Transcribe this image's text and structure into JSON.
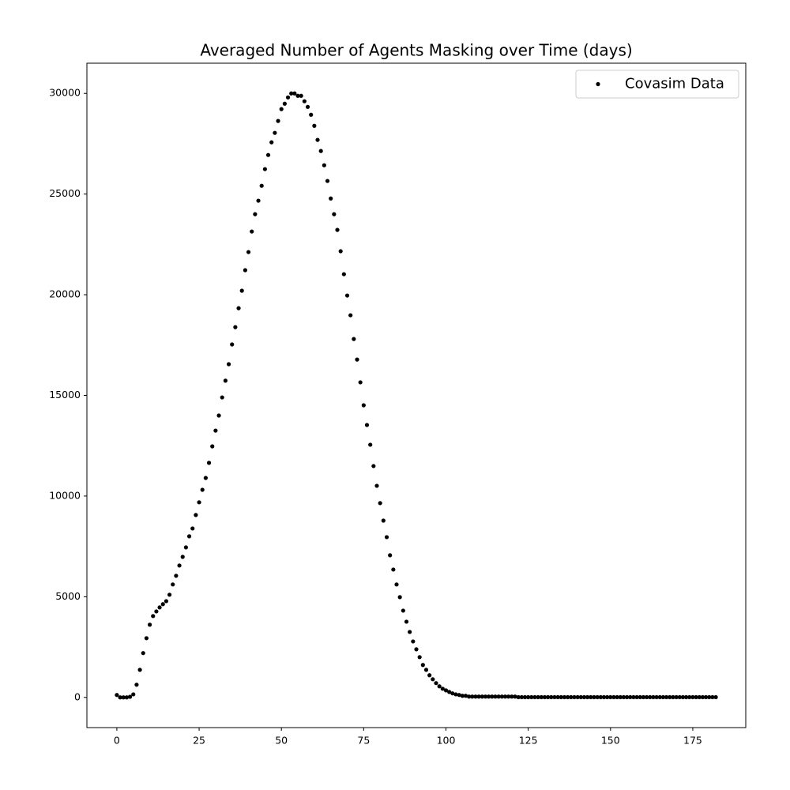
{
  "chart_data": {
    "type": "scatter",
    "title": "Averaged Number of Agents Masking over Time (days)",
    "series": [
      {
        "name": "Covasim Data",
        "color": "#000000",
        "x": [
          0,
          1,
          2,
          3,
          4,
          5,
          6,
          7,
          8,
          9,
          10,
          11,
          12,
          13,
          14,
          15,
          16,
          17,
          18,
          19,
          20,
          21,
          22,
          23,
          24,
          25,
          26,
          27,
          28,
          29,
          30,
          31,
          32,
          33,
          34,
          35,
          36,
          37,
          38,
          39,
          40,
          41,
          42,
          43,
          44,
          45,
          46,
          47,
          48,
          49,
          50,
          51,
          52,
          53,
          54,
          55,
          56,
          57,
          58,
          59,
          60,
          61,
          62,
          63,
          64,
          65,
          66,
          67,
          68,
          69,
          70,
          71,
          72,
          73,
          74,
          75,
          76,
          77,
          78,
          79,
          80,
          81,
          82,
          83,
          84,
          85,
          86,
          87,
          88,
          89,
          90,
          91,
          92,
          93,
          94,
          95,
          96,
          97,
          98,
          99,
          100,
          101,
          102,
          103,
          104,
          105,
          106,
          107,
          108,
          109,
          110,
          111,
          112,
          113,
          114,
          115,
          116,
          117,
          118,
          119,
          120,
          121,
          122,
          123,
          124,
          125,
          126,
          127,
          128,
          129,
          130,
          131,
          132,
          133,
          134,
          135,
          136,
          137,
          138,
          139,
          140,
          141,
          142,
          143,
          144,
          145,
          146,
          147,
          148,
          149,
          150,
          151,
          152,
          153,
          154,
          155,
          156,
          157,
          158,
          159,
          160,
          161,
          162,
          163,
          164,
          165,
          166,
          167,
          168,
          169,
          170,
          171,
          172,
          173,
          174,
          175,
          176,
          177,
          178,
          179,
          180,
          181,
          182
        ],
        "values": [
          120,
          0,
          0,
          0,
          30,
          150,
          630,
          1370,
          2200,
          2940,
          3610,
          4040,
          4270,
          4470,
          4630,
          4780,
          5100,
          5610,
          6040,
          6550,
          6980,
          7450,
          8000,
          8390,
          9060,
          9690,
          10310,
          10900,
          11650,
          12470,
          13250,
          14000,
          14900,
          15730,
          16550,
          17530,
          18390,
          19330,
          20200,
          21220,
          22120,
          23140,
          24000,
          24670,
          25410,
          26240,
          26940,
          27570,
          28040,
          28630,
          29220,
          29490,
          29800,
          30000,
          30000,
          29880,
          29880,
          29610,
          29330,
          28940,
          28390,
          27690,
          27140,
          26430,
          25650,
          24780,
          24000,
          23220,
          22160,
          21020,
          19960,
          18980,
          17800,
          16780,
          15650,
          14510,
          13530,
          12550,
          11490,
          10510,
          9650,
          8780,
          7960,
          7060,
          6350,
          5610,
          4980,
          4310,
          3760,
          3250,
          2780,
          2390,
          2000,
          1610,
          1370,
          1100,
          900,
          710,
          550,
          430,
          350,
          270,
          200,
          150,
          120,
          80,
          80,
          40,
          40,
          40,
          40,
          40,
          40,
          40,
          40,
          40,
          40,
          40,
          40,
          40,
          40,
          40,
          10,
          10,
          10,
          10,
          10,
          10,
          10,
          10,
          10,
          10,
          10,
          10,
          10,
          10,
          10,
          10,
          10,
          10,
          10,
          10,
          10,
          10,
          10,
          10,
          10,
          10,
          10,
          10,
          10,
          10,
          10,
          10,
          10,
          10,
          10,
          10,
          10,
          10,
          10,
          10,
          10,
          10,
          10,
          10,
          10,
          10,
          10,
          10,
          10,
          10,
          10,
          10,
          10,
          10,
          10,
          10,
          10,
          10,
          10,
          10,
          10
        ]
      }
    ],
    "xlim": [
      -9.1,
      191.1
    ],
    "xticks": [
      0,
      25,
      50,
      75,
      100,
      125,
      150,
      175
    ],
    "ylim": [
      -1500,
      31500
    ],
    "yticks": [
      0,
      5000,
      10000,
      15000,
      20000,
      25000,
      30000
    ],
    "grid": false,
    "legend": "upper right"
  }
}
